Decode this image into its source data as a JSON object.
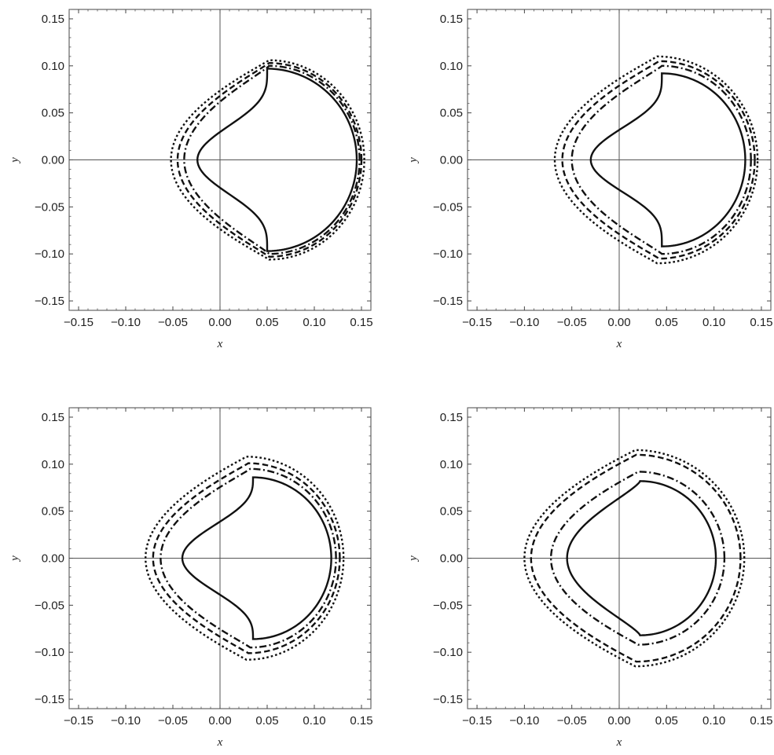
{
  "chart_data": [
    {
      "panel": "top-left",
      "type": "line",
      "xlabel": "x",
      "ylabel": "y",
      "xlim": [
        -0.16,
        0.16
      ],
      "ylim": [
        -0.16,
        0.16
      ],
      "xticks": [
        "-0.15",
        "-0.10",
        "-0.05",
        "0.00",
        "0.05",
        "0.10",
        "0.15"
      ],
      "yticks": [
        "-0.15",
        "-0.10",
        "-0.05",
        "0.00",
        "0.05",
        "0.10",
        "0.15"
      ],
      "grid": false,
      "series": [
        {
          "style": "solid",
          "x_min": -0.024,
          "x_max": 0.145,
          "y_max": 0.097,
          "center_x": 0.05,
          "flatness": 0.75
        },
        {
          "style": "dash-dot",
          "x_min": -0.038,
          "x_max": 0.148,
          "y_max": 0.1,
          "center_x": 0.052,
          "flatness": 0.12
        },
        {
          "style": "dashed",
          "x_min": -0.045,
          "x_max": 0.15,
          "y_max": 0.103,
          "center_x": 0.052,
          "flatness": 0.08
        },
        {
          "style": "dotted",
          "x_min": -0.052,
          "x_max": 0.153,
          "y_max": 0.106,
          "center_x": 0.052,
          "flatness": 0.05
        }
      ]
    },
    {
      "panel": "top-right",
      "type": "line",
      "xlabel": "x",
      "ylabel": "y",
      "xlim": [
        -0.16,
        0.16
      ],
      "ylim": [
        -0.16,
        0.16
      ],
      "xticks": [
        "-0.15",
        "-0.10",
        "-0.05",
        "0.00",
        "0.05",
        "0.10",
        "0.15"
      ],
      "yticks": [
        "-0.15",
        "-0.10",
        "-0.05",
        "0.00",
        "0.05",
        "0.10",
        "0.15"
      ],
      "grid": false,
      "series": [
        {
          "style": "solid",
          "x_min": -0.03,
          "x_max": 0.133,
          "y_max": 0.092,
          "center_x": 0.045,
          "flatness": 0.75
        },
        {
          "style": "dash-dot",
          "x_min": -0.05,
          "x_max": 0.139,
          "y_max": 0.1,
          "center_x": 0.045,
          "flatness": 0.1
        },
        {
          "style": "dashed",
          "x_min": -0.06,
          "x_max": 0.143,
          "y_max": 0.105,
          "center_x": 0.042,
          "flatness": 0.06
        },
        {
          "style": "dotted",
          "x_min": -0.068,
          "x_max": 0.146,
          "y_max": 0.11,
          "center_x": 0.04,
          "flatness": 0.04
        }
      ]
    },
    {
      "panel": "bottom-left",
      "type": "line",
      "xlabel": "x",
      "ylabel": "y",
      "xlim": [
        -0.16,
        0.16
      ],
      "ylim": [
        -0.16,
        0.16
      ],
      "xticks": [
        "-0.15",
        "-0.10",
        "-0.05",
        "0.00",
        "0.05",
        "0.10",
        "0.15"
      ],
      "yticks": [
        "-0.15",
        "-0.10",
        "-0.05",
        "0.00",
        "0.05",
        "0.10",
        "0.15"
      ],
      "grid": false,
      "series": [
        {
          "style": "solid",
          "x_min": -0.04,
          "x_max": 0.118,
          "y_max": 0.086,
          "center_x": 0.035,
          "flatness": 0.7
        },
        {
          "style": "dash-dot",
          "x_min": -0.063,
          "x_max": 0.123,
          "y_max": 0.095,
          "center_x": 0.032,
          "flatness": 0.08
        },
        {
          "style": "dashed",
          "x_min": -0.071,
          "x_max": 0.127,
          "y_max": 0.101,
          "center_x": 0.03,
          "flatness": 0.05
        },
        {
          "style": "dotted",
          "x_min": -0.079,
          "x_max": 0.131,
          "y_max": 0.108,
          "center_x": 0.028,
          "flatness": 0.03
        }
      ]
    },
    {
      "panel": "bottom-right",
      "type": "line",
      "xlabel": "x",
      "ylabel": "y",
      "xlim": [
        -0.16,
        0.16
      ],
      "ylim": [
        -0.16,
        0.16
      ],
      "xticks": [
        "-0.15",
        "-0.10",
        "-0.05",
        "0.00",
        "0.05",
        "0.10",
        "0.15"
      ],
      "yticks": [
        "-0.15",
        "-0.10",
        "-0.05",
        "0.00",
        "0.05",
        "0.10",
        "0.15"
      ],
      "grid": false,
      "series": [
        {
          "style": "solid",
          "x_min": -0.055,
          "x_max": 0.102,
          "y_max": 0.082,
          "center_x": 0.022,
          "flatness": 0.25
        },
        {
          "style": "dash-dot",
          "x_min": -0.072,
          "x_max": 0.111,
          "y_max": 0.092,
          "center_x": 0.02,
          "flatness": 0.04
        },
        {
          "style": "dashed",
          "x_min": -0.093,
          "x_max": 0.128,
          "y_max": 0.11,
          "center_x": 0.018,
          "flatness": 0.02
        },
        {
          "style": "dotted",
          "x_min": -0.1,
          "x_max": 0.132,
          "y_max": 0.115,
          "center_x": 0.017,
          "flatness": 0.01
        }
      ]
    }
  ]
}
